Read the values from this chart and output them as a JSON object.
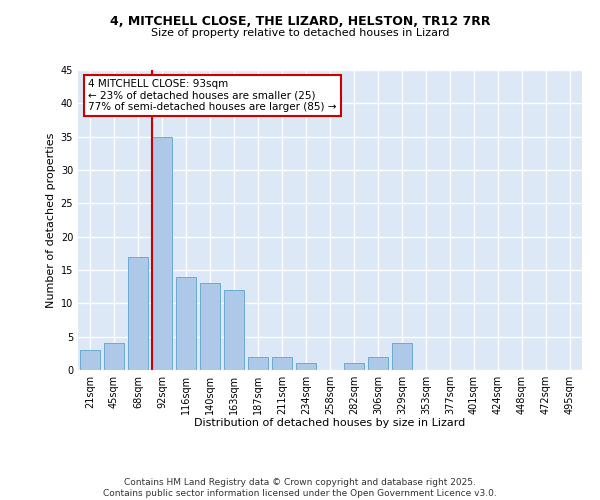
{
  "title1": "4, MITCHELL CLOSE, THE LIZARD, HELSTON, TR12 7RR",
  "title2": "Size of property relative to detached houses in Lizard",
  "xlabel": "Distribution of detached houses by size in Lizard",
  "ylabel": "Number of detached properties",
  "categories": [
    "21sqm",
    "45sqm",
    "68sqm",
    "92sqm",
    "116sqm",
    "140sqm",
    "163sqm",
    "187sqm",
    "211sqm",
    "234sqm",
    "258sqm",
    "282sqm",
    "306sqm",
    "329sqm",
    "353sqm",
    "377sqm",
    "401sqm",
    "424sqm",
    "448sqm",
    "472sqm",
    "495sqm"
  ],
  "values": [
    3,
    4,
    17,
    35,
    14,
    13,
    12,
    2,
    2,
    1,
    0,
    1,
    2,
    4,
    0,
    0,
    0,
    0,
    0,
    0,
    0
  ],
  "bar_color": "#aec9e8",
  "bar_edge_color": "#6aaad4",
  "ylim": [
    0,
    45
  ],
  "yticks": [
    0,
    5,
    10,
    15,
    20,
    25,
    30,
    35,
    40,
    45
  ],
  "property_line_bin": 3,
  "property_line_color": "#cc0000",
  "annotation_text": "4 MITCHELL CLOSE: 93sqm\n← 23% of detached houses are smaller (25)\n77% of semi-detached houses are larger (85) →",
  "annotation_box_color": "#cc0000",
  "background_color": "#dce8f5",
  "grid_color": "#ffffff",
  "footer_text": "Contains HM Land Registry data © Crown copyright and database right 2025.\nContains public sector information licensed under the Open Government Licence v3.0.",
  "title1_fontsize": 9,
  "title2_fontsize": 8,
  "xlabel_fontsize": 8,
  "ylabel_fontsize": 8,
  "tick_fontsize": 7,
  "annotation_fontsize": 7.5,
  "footer_fontsize": 6.5
}
